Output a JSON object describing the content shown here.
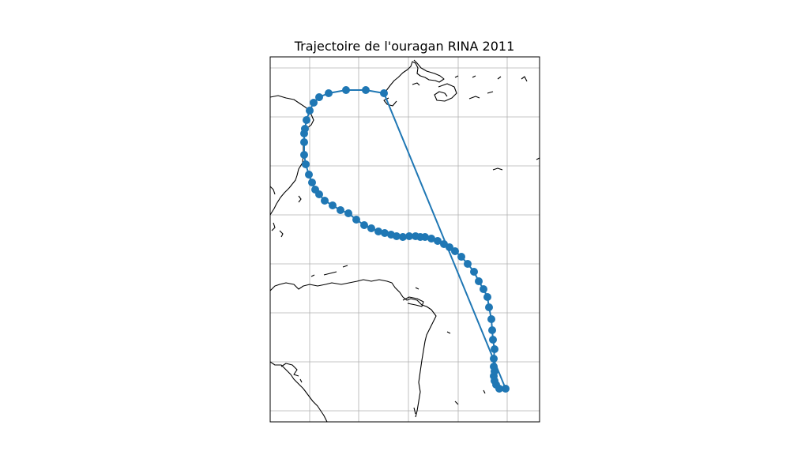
{
  "chart_data": {
    "type": "line",
    "title": "Trajectoire de l'ouragan RINA 2011",
    "xlabel": "",
    "ylabel": "",
    "grid": true,
    "projection": "map",
    "colors": {
      "track": "#1f77b4",
      "coastline": "#000000",
      "grid": "#b0b0b0",
      "frame": "#000000"
    },
    "series": [
      {
        "marker": "circle",
        "points": [
          [
            640,
            492
          ],
          [
            632,
            492
          ],
          [
            628,
            487
          ],
          [
            626,
            482
          ],
          [
            625,
            476
          ],
          [
            626,
            470
          ],
          [
            625,
            464
          ],
          [
            625,
            454
          ],
          [
            626,
            442
          ],
          [
            624,
            430
          ],
          [
            623,
            418
          ],
          [
            622,
            404
          ],
          [
            619,
            389
          ],
          [
            617,
            376
          ],
          [
            612,
            366
          ],
          [
            606,
            356
          ],
          [
            600,
            344
          ],
          [
            592,
            334
          ],
          [
            584,
            325
          ],
          [
            576,
            318
          ],
          [
            569,
            313
          ],
          [
            562,
            309
          ],
          [
            554,
            305
          ],
          [
            546,
            302
          ],
          [
            538,
            300
          ],
          [
            532,
            300
          ],
          [
            526,
            299
          ],
          [
            518,
            299
          ],
          [
            510,
            300
          ],
          [
            502,
            299
          ],
          [
            495,
            297
          ],
          [
            487,
            295
          ],
          [
            479,
            293
          ],
          [
            470,
            289
          ],
          [
            461,
            285
          ],
          [
            451,
            278
          ],
          [
            441,
            270
          ],
          [
            431,
            266
          ],
          [
            421,
            260
          ],
          [
            411,
            254
          ],
          [
            404,
            246
          ],
          [
            399,
            240
          ],
          [
            395,
            231
          ],
          [
            391,
            221
          ],
          [
            387,
            208
          ],
          [
            385,
            196
          ],
          [
            385,
            180
          ],
          [
            385,
            169
          ],
          [
            386,
            163
          ],
          [
            388,
            152
          ],
          [
            392,
            140
          ],
          [
            397,
            130
          ],
          [
            404,
            123
          ],
          [
            416,
            118
          ],
          [
            438,
            114
          ],
          [
            463,
            114
          ],
          [
            486,
            118
          ]
        ],
        "return_leg": [
          [
            486,
            118
          ],
          [
            640,
            492
          ]
        ]
      }
    ]
  }
}
